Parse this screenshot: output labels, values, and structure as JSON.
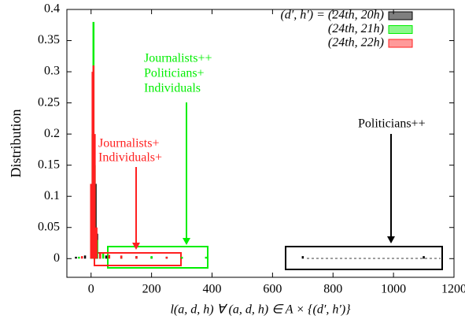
{
  "chart_data": {
    "type": "impulse",
    "ylabel": "Distribution",
    "xlabel": "l(a, d, h) ∀ (a, d, h) ∈ A × {(d′, h′)}",
    "xlim": [
      -80,
      1200
    ],
    "xticks": [
      0,
      200,
      400,
      600,
      800,
      1000,
      1200
    ],
    "ylim": [
      -0.03,
      0.4
    ],
    "yticks": [
      0,
      0.05,
      0.1,
      0.15,
      0.2,
      0.25,
      0.3,
      0.35,
      0.4
    ],
    "grid": false,
    "legend": "upper right",
    "series": [
      {
        "name": "(d′, h′) = (24th, 20h)",
        "color": "#000000",
        "x": [
          -50,
          -20,
          0,
          5,
          10,
          15,
          20,
          30,
          50,
          100,
          150,
          200,
          250,
          300,
          700,
          1100
        ],
        "values": [
          0.003,
          0.005,
          0.05,
          0.115,
          0.08,
          0.12,
          0.04,
          0.01,
          0.005,
          0.004,
          0.004,
          0.003,
          0.003,
          0.002,
          0.004,
          0.004
        ]
      },
      {
        "name": "(24th, 21h)",
        "color": "#00ee00",
        "x": [
          -40,
          0,
          5,
          8,
          12,
          20,
          40,
          100,
          200,
          300,
          380
        ],
        "values": [
          0.003,
          0.1,
          0.2,
          0.38,
          0.15,
          0.03,
          0.008,
          0.004,
          0.004,
          0.003,
          0.003
        ]
      },
      {
        "name": "(24th, 22h)",
        "color": "#ff2020",
        "x": [
          -30,
          0,
          5,
          8,
          12,
          18,
          30,
          60,
          100,
          150,
          250
        ],
        "values": [
          0.004,
          0.12,
          0.3,
          0.31,
          0.2,
          0.05,
          0.01,
          0.006,
          0.005,
          0.004,
          0.003
        ]
      }
    ],
    "annotations": [
      {
        "lines": [
          "Journalists++",
          "Politicians+",
          "Individuals"
        ],
        "color": "#00ee00"
      },
      {
        "lines": [
          "Journalists+",
          "Individuals+"
        ],
        "color": "#ff2020"
      },
      {
        "lines": [
          "Politicians++"
        ],
        "color": "#000000"
      }
    ]
  }
}
